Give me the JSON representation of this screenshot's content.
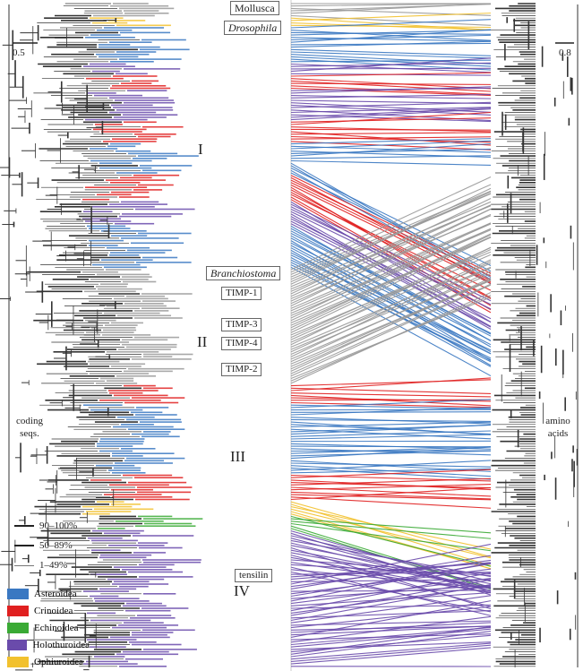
{
  "labels": {
    "mollusca": "Mollusca",
    "drosophila": "Drosophila",
    "branchiostoma": "Branchiostoma",
    "timp1": "TIMP-1",
    "timp3": "TIMP-3",
    "timp4": "TIMP-4",
    "timp2": "TIMP-2",
    "tensilin": "tensilin"
  },
  "clades": [
    "I",
    "II",
    "III",
    "IV"
  ],
  "panels": {
    "left": "coding\nseqs.",
    "right": "amino\nacids"
  },
  "scale_bars": {
    "left": "0.5",
    "right": "0.8"
  },
  "support_legend": [
    "90–100%",
    "50–89%",
    "1–49%"
  ],
  "class_legend": [
    {
      "name": "Asteroidea",
      "color": "#3a78c2"
    },
    {
      "name": "Crinoidea",
      "color": "#e02020"
    },
    {
      "name": "Echinoidea",
      "color": "#3aaa35"
    },
    {
      "name": "Holothuroidea",
      "color": "#6a4bab"
    },
    {
      "name": "Ophiuroidea",
      "color": "#f2c12e"
    }
  ],
  "outgroup_color": "#999999"
}
